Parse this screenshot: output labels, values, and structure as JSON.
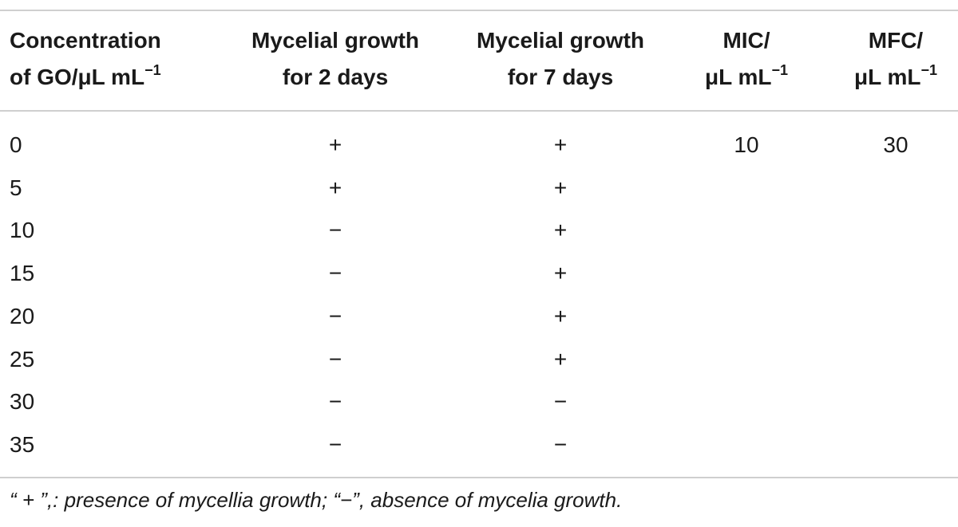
{
  "table": {
    "header": [
      {
        "lines": [
          "Concentration",
          "of GO/μL mL"
        ],
        "sup": "−1"
      },
      {
        "lines": [
          "Mycelial growth",
          "for 2 days"
        ]
      },
      {
        "lines": [
          "Mycelial growth",
          "for 7 days"
        ]
      },
      {
        "lines": [
          "MIC/",
          "μL mL"
        ],
        "sup": "−1"
      },
      {
        "lines": [
          "MFC/",
          "μL mL"
        ],
        "sup": "−1"
      }
    ],
    "rows": [
      [
        "0",
        "+",
        "+",
        "10",
        "30"
      ],
      [
        "5",
        "+",
        "+",
        null,
        null
      ],
      [
        "10",
        "−",
        "+",
        null,
        null
      ],
      [
        "15",
        "−",
        "+",
        null,
        null
      ],
      [
        "20",
        "−",
        "+",
        null,
        null
      ],
      [
        "25",
        "−",
        "+",
        null,
        null
      ],
      [
        "30",
        "−",
        "−",
        null,
        null
      ],
      [
        "35",
        "−",
        "−",
        null,
        null
      ]
    ],
    "footnote": "“ + ”,: presence of mycellia growth; “−”, absence of mycelia growth."
  }
}
